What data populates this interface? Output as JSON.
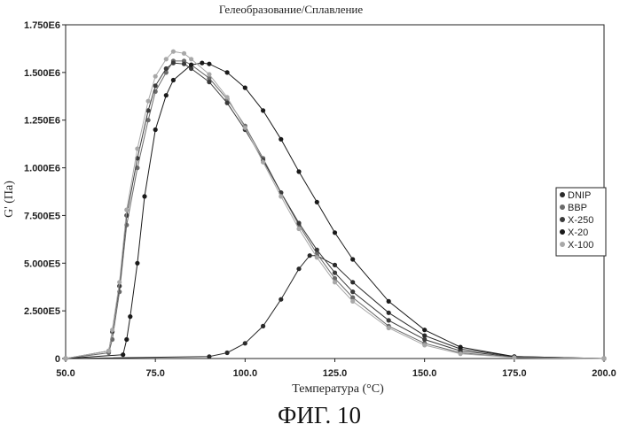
{
  "chart_data": {
    "type": "scatter",
    "title": "Гелеобразование/Сплавление",
    "xlabel": "Температура (°C)",
    "ylabel": "G' (Па)",
    "xlim": [
      50.0,
      200.0
    ],
    "ylim": [
      0,
      1750000
    ],
    "xticks": [
      50.0,
      75.0,
      100.0,
      125.0,
      150.0,
      175.0,
      200.0
    ],
    "xtick_labels": [
      "50.0",
      "75.0",
      "100.0",
      "125.0",
      "150.0",
      "175.0",
      "200.0"
    ],
    "yticks": [
      0,
      250000,
      500000,
      750000,
      1000000,
      1250000,
      1500000,
      1750000
    ],
    "ytick_labels": [
      "0",
      "2.500E5",
      "5.000E5",
      "7.500E5",
      "1.000E6",
      "1.250E6",
      "1.500E6",
      "1.750E6"
    ],
    "legend_position": "right",
    "series": [
      {
        "name": "DNIP",
        "color": "#2a2a2a",
        "x": [
          50,
          90,
          95,
          100,
          105,
          110,
          115,
          118,
          120,
          125,
          130,
          140,
          150,
          160,
          175,
          200
        ],
        "y": [
          0,
          10000,
          30000,
          80000,
          170000,
          310000,
          470000,
          540000,
          540000,
          490000,
          400000,
          240000,
          120000,
          50000,
          10000,
          0
        ]
      },
      {
        "name": "BBP",
        "color": "#6a6a6a",
        "x": [
          50,
          62,
          63,
          65,
          67,
          70,
          73,
          75,
          78,
          80,
          83,
          85,
          90,
          95,
          100,
          105,
          110,
          115,
          120,
          125,
          130,
          140,
          150,
          160,
          175,
          200
        ],
        "y": [
          0,
          30000,
          100000,
          350000,
          700000,
          1000000,
          1250000,
          1400000,
          1500000,
          1560000,
          1560000,
          1540000,
          1470000,
          1360000,
          1220000,
          1050000,
          870000,
          700000,
          550000,
          420000,
          320000,
          170000,
          80000,
          30000,
          5000,
          0
        ]
      },
      {
        "name": "X-250",
        "color": "#3a3a3a",
        "x": [
          50,
          62,
          63,
          65,
          67,
          70,
          73,
          75,
          78,
          80,
          83,
          85,
          90,
          95,
          100,
          105,
          110,
          115,
          120,
          125,
          130,
          140,
          150,
          160,
          175,
          200
        ],
        "y": [
          0,
          40000,
          140000,
          380000,
          750000,
          1050000,
          1300000,
          1430000,
          1520000,
          1550000,
          1545000,
          1520000,
          1450000,
          1340000,
          1200000,
          1040000,
          870000,
          710000,
          570000,
          450000,
          350000,
          200000,
          100000,
          40000,
          8000,
          0
        ]
      },
      {
        "name": "X-20",
        "color": "#1a1a1a",
        "x": [
          50,
          66,
          67,
          68,
          70,
          72,
          75,
          78,
          80,
          85,
          88,
          90,
          95,
          100,
          105,
          110,
          115,
          120,
          125,
          130,
          140,
          150,
          160,
          175,
          200
        ],
        "y": [
          0,
          20000,
          100000,
          220000,
          500000,
          850000,
          1200000,
          1380000,
          1460000,
          1540000,
          1550000,
          1545000,
          1500000,
          1420000,
          1300000,
          1150000,
          980000,
          820000,
          660000,
          520000,
          300000,
          150000,
          60000,
          10000,
          0
        ]
      },
      {
        "name": "X-100",
        "color": "#a8a8a8",
        "x": [
          50,
          62,
          63,
          65,
          67,
          70,
          73,
          75,
          78,
          80,
          83,
          85,
          90,
          95,
          100,
          105,
          110,
          115,
          120,
          125,
          130,
          140,
          150,
          160,
          175,
          200
        ],
        "y": [
          0,
          40000,
          150000,
          400000,
          780000,
          1100000,
          1350000,
          1480000,
          1570000,
          1610000,
          1600000,
          1570000,
          1490000,
          1370000,
          1210000,
          1030000,
          850000,
          680000,
          530000,
          400000,
          300000,
          160000,
          70000,
          25000,
          5000,
          0
        ]
      }
    ]
  },
  "caption": "ФИГ. 10"
}
